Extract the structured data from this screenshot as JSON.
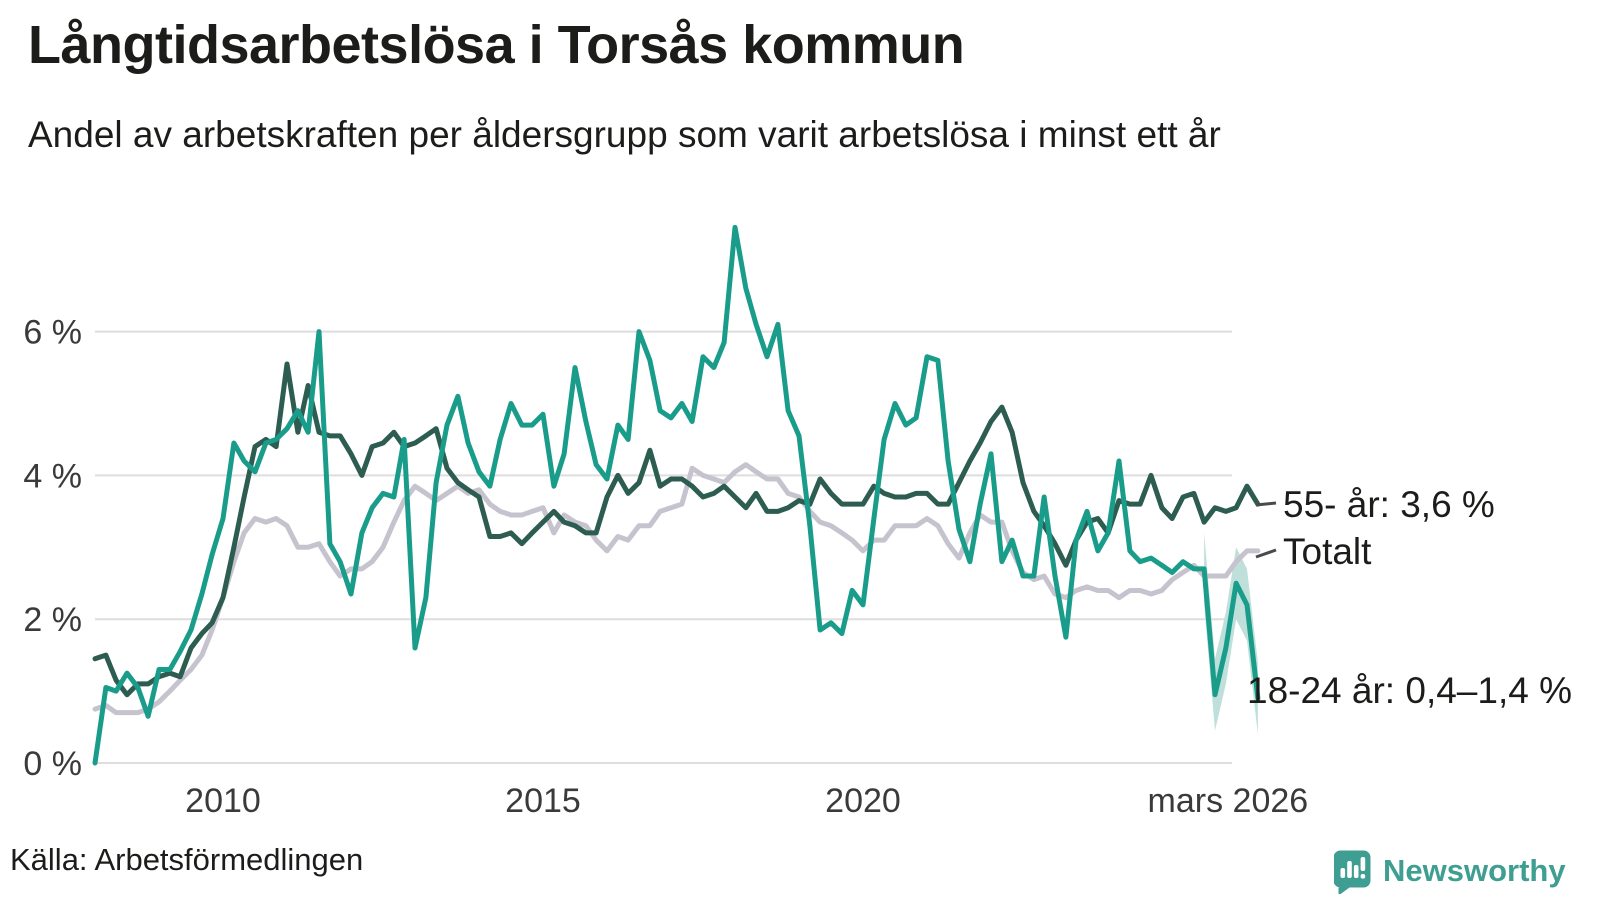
{
  "header": {
    "title": "Långtidsarbetslösa i Torsås kommun",
    "subtitle": "Andel av arbetskraften per åldersgrupp som varit arbetslösa i minst ett år"
  },
  "footer": {
    "source": "Källa: Arbetsförmedlingen",
    "brand": "Newsworthy",
    "brand_color": "#3f9e92"
  },
  "chart_data": {
    "type": "line",
    "title": "Långtidsarbetslösa i Torsås kommun",
    "subtitle": "Andel av arbetskraften per åldersgrupp som varit arbetslösa i minst ett år",
    "unit": "% av arbetskraften",
    "grid": true,
    "legend_position": "line-end-labels-right",
    "x_axis": {
      "range": [
        2008.0,
        2026.25
      ],
      "ticks": [
        {
          "label": "2010",
          "x": 2010
        },
        {
          "label": "2015",
          "x": 2015
        },
        {
          "label": "2020",
          "x": 2020
        },
        {
          "label": "mars 2026",
          "x": 2026.17
        }
      ]
    },
    "y_axis": {
      "range": [
        0,
        7.6
      ],
      "ticks": [
        {
          "label": "0 %",
          "value": 0
        },
        {
          "label": "2 %",
          "value": 2
        },
        {
          "label": "4 %",
          "value": 4
        },
        {
          "label": "6 %",
          "value": 6
        }
      ]
    },
    "x": [
      2008.0,
      2008.17,
      2008.33,
      2008.5,
      2008.67,
      2008.83,
      2009.0,
      2009.17,
      2009.33,
      2009.5,
      2009.67,
      2009.83,
      2010.0,
      2010.17,
      2010.33,
      2010.5,
      2010.67,
      2010.83,
      2011.0,
      2011.17,
      2011.33,
      2011.5,
      2011.67,
      2011.83,
      2012.0,
      2012.17,
      2012.33,
      2012.5,
      2012.67,
      2012.83,
      2013.0,
      2013.17,
      2013.33,
      2013.5,
      2013.67,
      2013.83,
      2014.0,
      2014.17,
      2014.33,
      2014.5,
      2014.67,
      2014.83,
      2015.0,
      2015.17,
      2015.33,
      2015.5,
      2015.67,
      2015.83,
      2016.0,
      2016.17,
      2016.33,
      2016.5,
      2016.67,
      2016.83,
      2017.0,
      2017.17,
      2017.33,
      2017.5,
      2017.67,
      2017.83,
      2018.0,
      2018.17,
      2018.33,
      2018.5,
      2018.67,
      2018.83,
      2019.0,
      2019.17,
      2019.33,
      2019.5,
      2019.67,
      2019.83,
      2020.0,
      2020.17,
      2020.33,
      2020.5,
      2020.67,
      2020.83,
      2021.0,
      2021.17,
      2021.33,
      2021.5,
      2021.67,
      2021.83,
      2022.0,
      2022.17,
      2022.33,
      2022.5,
      2022.67,
      2022.83,
      2023.0,
      2023.17,
      2023.33,
      2023.5,
      2023.67,
      2023.83,
      2024.0,
      2024.17,
      2024.33,
      2024.5,
      2024.67,
      2024.83,
      2025.0,
      2025.17,
      2025.33,
      2025.5,
      2025.67,
      2025.83,
      2026.0,
      2026.17
    ],
    "series": [
      {
        "name": "Totalt",
        "end_label": "Totalt",
        "color": "#c6c3cf",
        "last_value": "3,0 %",
        "values": [
          0.75,
          0.8,
          0.7,
          0.7,
          0.7,
          0.75,
          0.85,
          1.0,
          1.15,
          1.3,
          1.5,
          1.85,
          2.3,
          2.8,
          3.2,
          3.4,
          3.35,
          3.4,
          3.3,
          3.0,
          3.0,
          3.05,
          2.8,
          2.6,
          2.7,
          2.7,
          2.8,
          3.0,
          3.35,
          3.65,
          3.85,
          3.75,
          3.65,
          3.75,
          3.85,
          3.75,
          3.8,
          3.6,
          3.5,
          3.45,
          3.45,
          3.5,
          3.55,
          3.2,
          3.45,
          3.35,
          3.3,
          3.1,
          2.95,
          3.15,
          3.1,
          3.3,
          3.3,
          3.5,
          3.55,
          3.6,
          4.1,
          4.0,
          3.95,
          3.9,
          4.05,
          4.15,
          4.05,
          3.95,
          3.95,
          3.75,
          3.7,
          3.5,
          3.35,
          3.3,
          3.2,
          3.1,
          2.95,
          3.1,
          3.1,
          3.3,
          3.3,
          3.3,
          3.4,
          3.3,
          3.05,
          2.85,
          3.2,
          3.45,
          3.35,
          3.35,
          2.95,
          2.65,
          2.55,
          2.6,
          2.35,
          2.3,
          2.4,
          2.45,
          2.4,
          2.4,
          2.3,
          2.4,
          2.4,
          2.35,
          2.4,
          2.55,
          2.65,
          2.75,
          2.6,
          2.6,
          2.6,
          2.8,
          2.95,
          2.95
        ]
      },
      {
        "name": "55- år",
        "end_label": "55- år: 3,6 %",
        "color": "#2d5c50",
        "last_value": "3,6 %",
        "values": [
          1.45,
          1.5,
          1.15,
          0.95,
          1.1,
          1.1,
          1.2,
          1.25,
          1.2,
          1.6,
          1.8,
          1.95,
          2.3,
          3.0,
          3.7,
          4.4,
          4.5,
          4.4,
          5.55,
          4.6,
          5.25,
          4.6,
          4.55,
          4.55,
          4.3,
          4.0,
          4.4,
          4.45,
          4.6,
          4.4,
          4.45,
          4.55,
          4.65,
          4.1,
          3.9,
          3.8,
          3.7,
          3.15,
          3.15,
          3.2,
          3.05,
          3.2,
          3.35,
          3.5,
          3.35,
          3.3,
          3.2,
          3.2,
          3.7,
          4.0,
          3.75,
          3.9,
          4.35,
          3.85,
          3.95,
          3.95,
          3.85,
          3.7,
          3.75,
          3.85,
          3.7,
          3.55,
          3.75,
          3.5,
          3.5,
          3.55,
          3.65,
          3.6,
          3.95,
          3.75,
          3.6,
          3.6,
          3.6,
          3.85,
          3.75,
          3.7,
          3.7,
          3.75,
          3.75,
          3.6,
          3.6,
          3.9,
          4.2,
          4.45,
          4.75,
          4.95,
          4.6,
          3.9,
          3.5,
          3.3,
          3.05,
          2.75,
          3.1,
          3.35,
          3.4,
          3.2,
          3.65,
          3.6,
          3.6,
          4.0,
          3.55,
          3.4,
          3.7,
          3.75,
          3.35,
          3.55,
          3.5,
          3.55,
          3.85,
          3.6
        ]
      },
      {
        "name": "18-24 år",
        "end_label": "18-24 år: 0,4–1,4 %",
        "color": "#1a9c8b",
        "last_value": "0,4–1,4 %",
        "values": [
          0.0,
          1.05,
          1.0,
          1.25,
          1.05,
          0.65,
          1.3,
          1.3,
          1.55,
          1.85,
          2.35,
          2.9,
          3.4,
          4.45,
          4.2,
          4.05,
          4.45,
          4.5,
          4.65,
          4.9,
          4.6,
          6.0,
          3.05,
          2.8,
          2.35,
          3.2,
          3.55,
          3.75,
          3.7,
          4.5,
          1.6,
          2.3,
          3.9,
          4.7,
          5.1,
          4.45,
          4.05,
          3.85,
          4.5,
          5.0,
          4.7,
          4.7,
          4.85,
          3.85,
          4.3,
          5.5,
          4.75,
          4.15,
          3.95,
          4.7,
          4.5,
          6.0,
          5.6,
          4.9,
          4.8,
          5.0,
          4.75,
          5.65,
          5.5,
          5.85,
          7.45,
          6.6,
          6.1,
          5.65,
          6.1,
          4.9,
          4.55,
          3.3,
          1.85,
          1.95,
          1.8,
          2.4,
          2.2,
          3.4,
          4.5,
          5.0,
          4.7,
          4.8,
          5.65,
          5.6,
          4.2,
          3.25,
          2.8,
          3.6,
          4.3,
          2.8,
          3.1,
          2.6,
          2.6,
          3.7,
          2.6,
          1.75,
          3.1,
          3.5,
          2.95,
          3.2,
          4.2,
          2.95,
          2.8,
          2.85,
          2.75,
          2.65,
          2.8,
          2.7,
          2.7,
          0.95,
          1.6,
          2.5,
          2.2,
          0.9
        ],
        "uncertainty": {
          "color": "#bfe0da",
          "x": [
            2025.33,
            2025.5,
            2025.67,
            2025.83,
            2026.0,
            2026.17
          ],
          "lower": [
            2.2,
            0.45,
            1.1,
            2.0,
            1.7,
            0.4
          ],
          "upper": [
            3.2,
            1.45,
            2.1,
            3.0,
            2.7,
            1.4
          ]
        }
      }
    ]
  }
}
